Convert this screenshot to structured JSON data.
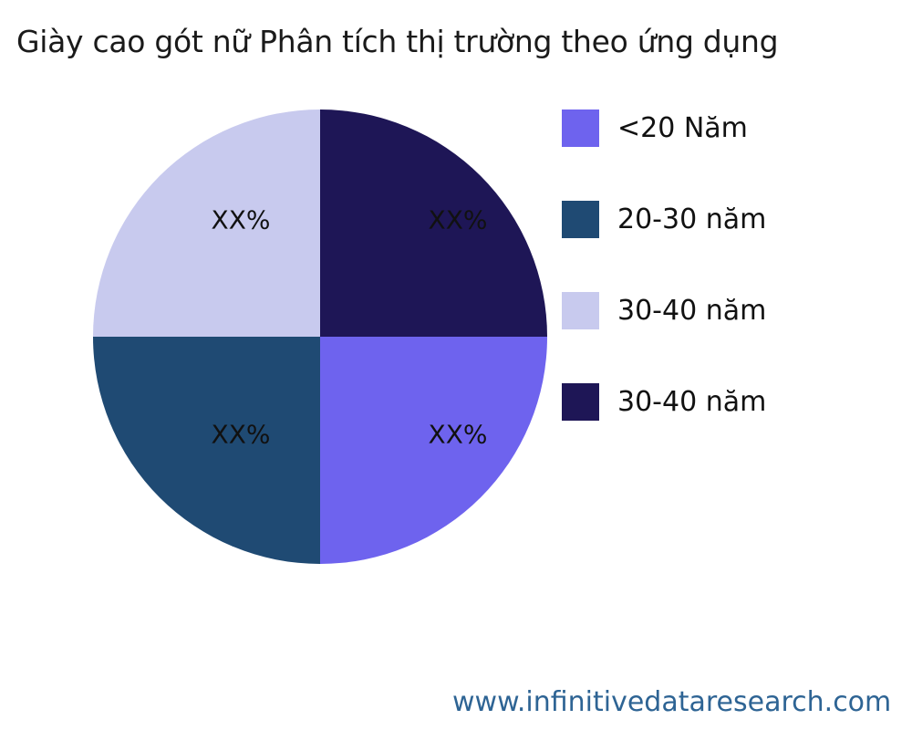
{
  "title": "Giày cao gót nữ Phân tích thị trường theo ứng dụng",
  "footer": {
    "url_text": "www.infinitivedataresearch.com",
    "color": "#2e6494"
  },
  "colors": {
    "background": "#ffffff",
    "title_text": "#1a1a1a",
    "label_text": "#111111"
  },
  "chart_data": {
    "type": "pie",
    "title": "Giày cao gót nữ Phân tích thị trường theo ứng dụng",
    "start_angle_deg": 0,
    "direction": "clockwise",
    "legend_position": "right",
    "slices": [
      {
        "label": "<20 Năm",
        "value": 25,
        "display_pct": "XX%",
        "color": "#6e63ee"
      },
      {
        "label": "20-30 năm",
        "value": 25,
        "display_pct": "XX%",
        "color": "#1f4a73"
      },
      {
        "label": "30-40 năm",
        "value": 25,
        "display_pct": "XX%",
        "color": "#c8caee"
      },
      {
        "label": "30-40 năm",
        "value": 25,
        "display_pct": "XX%",
        "color": "#1e1656"
      }
    ]
  }
}
